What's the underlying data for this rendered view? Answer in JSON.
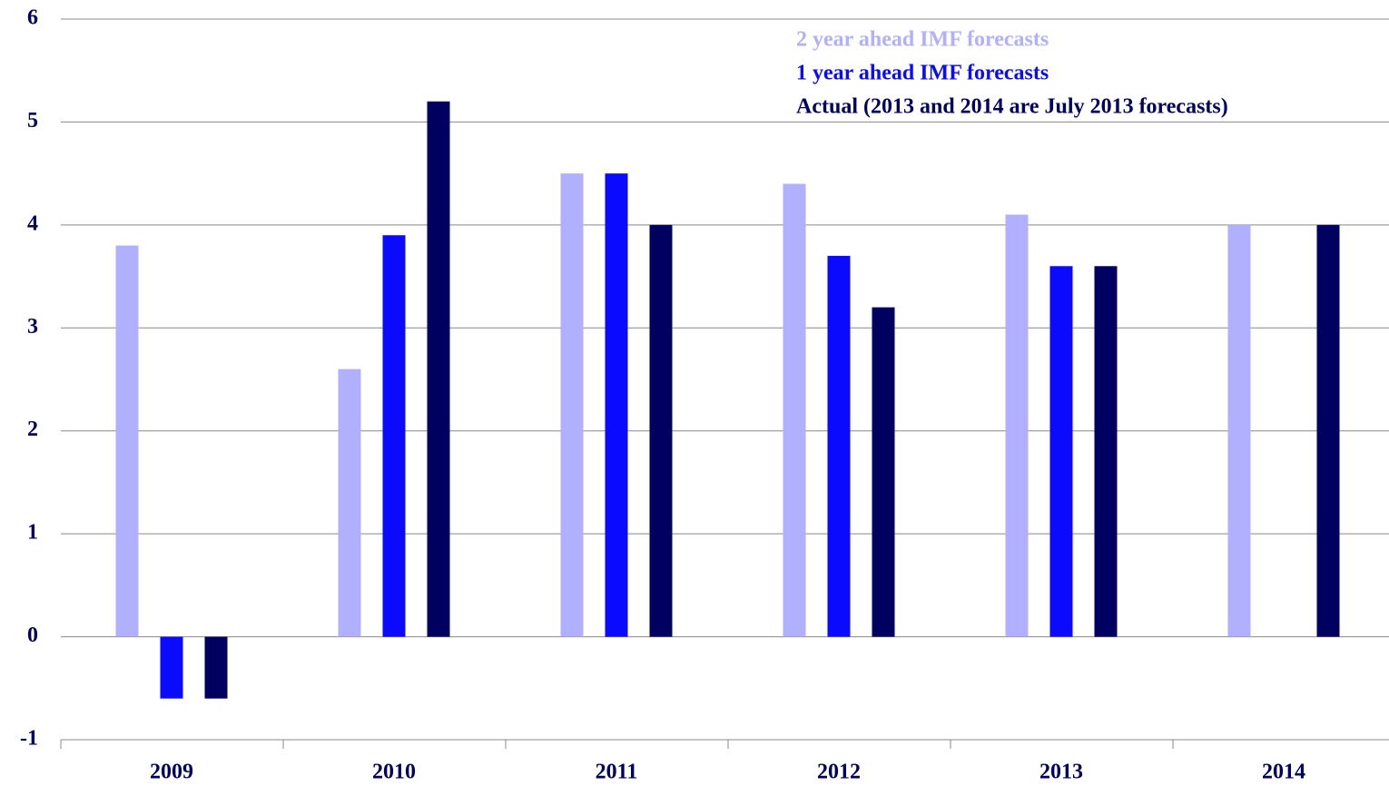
{
  "chart_data": {
    "type": "bar",
    "categories": [
      "2009",
      "2010",
      "2011",
      "2012",
      "2013",
      "2014"
    ],
    "series": [
      {
        "name": "2 year ahead IMF forecasts",
        "color": "#b0b0ff",
        "values": [
          3.8,
          2.6,
          4.5,
          4.4,
          4.1,
          4.0
        ]
      },
      {
        "name": "1 year ahead IMF forecasts",
        "color": "#0a0aff",
        "values": [
          -0.6,
          3.9,
          4.5,
          3.7,
          3.6,
          null
        ]
      },
      {
        "name": "Actual (2013 and 2014 are July 2013 forecasts)",
        "color": "#000060",
        "values": [
          -0.6,
          5.2,
          4.0,
          3.2,
          3.6,
          4.0
        ]
      }
    ],
    "ylim": [
      -1,
      6
    ],
    "yticks": [
      -1,
      0,
      1,
      2,
      3,
      4,
      5,
      6
    ],
    "grid": true,
    "legend": "upper right",
    "text_color": "#000060"
  }
}
